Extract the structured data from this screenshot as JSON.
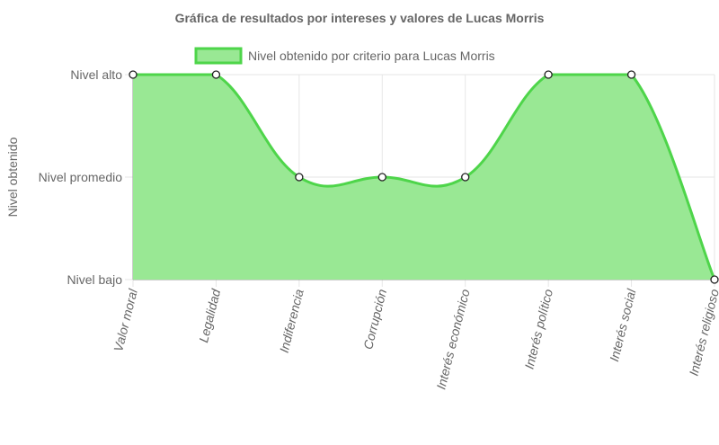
{
  "chart_data": {
    "type": "area",
    "title": "Gráfica de resultados por intereses y valores de Lucas Morris",
    "ylabel": "Nivel obtenido",
    "xlabel": "",
    "categories": [
      "Valor moral",
      "Legalidad",
      "Indiferencia",
      "Corrupción",
      "Interés económico",
      "Interés político",
      "Interés social",
      "Interés religioso"
    ],
    "y_ticks": [
      "Nivel bajo",
      "Nivel promedio",
      "Nivel alto"
    ],
    "ylim": [
      0,
      2
    ],
    "series": [
      {
        "name": "Nivel obtenido por criterio para Lucas Morris",
        "values": [
          2,
          2,
          1,
          1,
          1,
          2,
          2,
          0
        ]
      }
    ],
    "legend_position": "top",
    "grid": true,
    "colors": {
      "fill": "#99e894",
      "line": "#4ed54a",
      "grid": "#e6e6e6",
      "zero_line": "#9a9a9a",
      "point_fill": "#ffffff",
      "point_stroke": "#222222"
    }
  }
}
